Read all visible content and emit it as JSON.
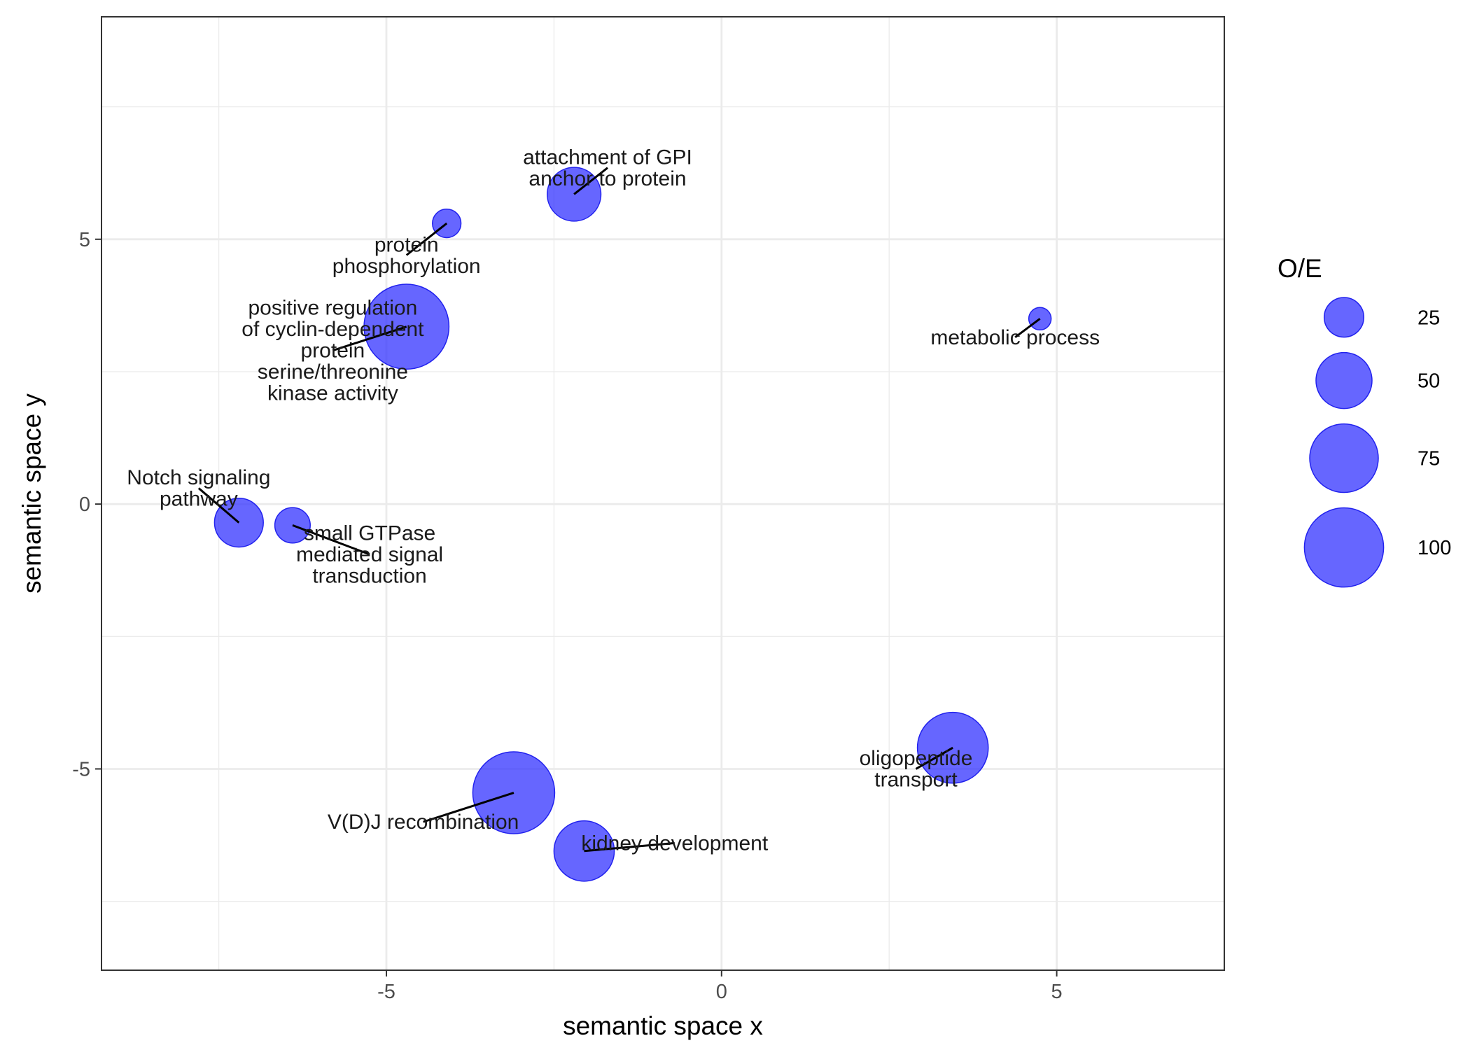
{
  "chart_data": {
    "type": "scatter",
    "xlabel": "semantic space x",
    "ylabel": "semantic space y",
    "xlim": [
      -9.25,
      7.5
    ],
    "ylim": [
      -8.8,
      9.2
    ],
    "x_major_ticks": [
      -5,
      0,
      5
    ],
    "x_minor_ticks": [
      -7.5,
      -2.5,
      2.5
    ],
    "y_major_ticks": [
      -5,
      0,
      5
    ],
    "y_minor_ticks": [
      -7.5,
      -2.5,
      2.5,
      7.5
    ],
    "grid": true,
    "legend": {
      "title": "O/E",
      "placement": "right",
      "entries": [
        {
          "value": 25,
          "label": "25"
        },
        {
          "value": 50,
          "label": "50"
        },
        {
          "value": 75,
          "label": "75"
        },
        {
          "value": 100,
          "label": "100"
        }
      ]
    },
    "colors": {
      "point_fill": "#3333ff",
      "point_stroke": "#2222ee",
      "grid": "#ebebeb",
      "panel_border": "#333333"
    },
    "points": [
      {
        "x": -4.1,
        "y": 5.3,
        "size": 13,
        "lines": [
          "protein",
          "phosphorylation"
        ],
        "label_x": -4.7,
        "label_y": 4.7
      },
      {
        "x": -2.2,
        "y": 5.85,
        "size": 46,
        "lines": [
          "attachment of GPI",
          "anchor to protein"
        ],
        "label_x": -1.7,
        "label_y": 6.35
      },
      {
        "x": -4.7,
        "y": 3.35,
        "size": 115,
        "lines": [
          "positive regulation",
          "of cyclin-dependent",
          "protein",
          "serine/threonine",
          "kinase activity"
        ],
        "label_x": -5.8,
        "label_y": 2.9
      },
      {
        "x": 4.75,
        "y": 3.5,
        "size": 8,
        "lines": [
          "metabolic process"
        ],
        "label_x": 4.38,
        "label_y": 3.15
      },
      {
        "x": -7.2,
        "y": -0.35,
        "size": 38,
        "lines": [
          "Notch signaling",
          "pathway"
        ],
        "label_x": -7.8,
        "label_y": 0.3
      },
      {
        "x": -6.4,
        "y": -0.4,
        "size": 20,
        "lines": [
          "small GTPase",
          "mediated signal",
          "transduction"
        ],
        "label_x": -5.25,
        "label_y": -0.95
      },
      {
        "x": -3.1,
        "y": -5.45,
        "size": 107,
        "lines": [
          "V(D)J recombination"
        ],
        "label_x": -4.45,
        "label_y": -6.0
      },
      {
        "x": -2.05,
        "y": -6.55,
        "size": 58,
        "lines": [
          "kidney development"
        ],
        "label_x": -0.7,
        "label_y": -6.4
      },
      {
        "x": 3.45,
        "y": -4.6,
        "size": 80,
        "lines": [
          "oligopeptide",
          "transport"
        ],
        "label_x": 2.9,
        "label_y": -5.0
      }
    ]
  }
}
